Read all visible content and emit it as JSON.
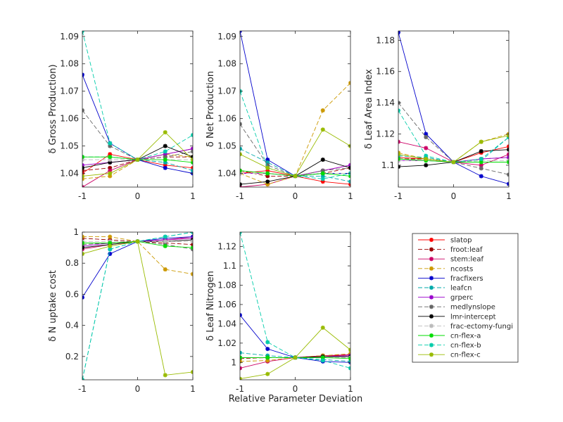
{
  "figure": {
    "xlabel": "Relative Parameter Deviation"
  },
  "legend_colors": {
    "slatop": "#ff0000",
    "froot:leaf": "#990000",
    "stem:leaf": "#cc0066",
    "ncosts": "#cc9900",
    "fracfixers": "#0000cc",
    "leafcn": "#00aaaa",
    "grperc": "#9900cc",
    "medlynslope": "#666666",
    "lmr-intercept": "#000000",
    "frac-ectomy-fungi": "#bbbbbb",
    "cn-flex-a": "#00dd00",
    "cn-flex-b": "#00ccaa",
    "cn-flex-c": "#99bb00"
  },
  "legend_styles": {
    "slatop": "solid",
    "froot:leaf": "dashed",
    "stem:leaf": "solid",
    "ncosts": "dashed",
    "fracfixers": "solid",
    "leafcn": "dashed",
    "grperc": "solid",
    "medlynslope": "dashed",
    "lmr-intercept": "solid",
    "frac-ectomy-fungi": "dashed",
    "cn-flex-a": "solid",
    "cn-flex-b": "dashed",
    "cn-flex-c": "solid"
  },
  "legend_order": [
    "slatop",
    "froot:leaf",
    "stem:leaf",
    "ncosts",
    "fracfixers",
    "leafcn",
    "grperc",
    "medlynslope",
    "lmr-intercept",
    "frac-ectomy-fungi",
    "cn-flex-a",
    "cn-flex-b",
    "cn-flex-c"
  ],
  "chart_data": [
    {
      "type": "line",
      "ylabel": "δ Gross Production)",
      "x": [
        -1,
        -0.5,
        0,
        0.5,
        1
      ],
      "xlim": [
        -1,
        1
      ],
      "ylim": [
        1.035,
        1.092
      ],
      "xticks": [
        -1,
        0,
        1
      ],
      "yticks": [
        1.04,
        1.05,
        1.06,
        1.07,
        1.08,
        1.09
      ],
      "ytick_labels": [
        "1.04",
        "1.05",
        "1.06",
        "1.07",
        "1.08",
        "1.09"
      ],
      "series": [
        {
          "name": "slatop",
          "values": [
            1.04,
            1.047,
            1.045,
            1.043,
            1.042
          ]
        },
        {
          "name": "froot:leaf",
          "values": [
            1.041,
            1.042,
            1.045,
            1.046,
            1.046
          ]
        },
        {
          "name": "stem:leaf",
          "values": [
            1.035,
            1.041,
            1.045,
            1.047,
            1.049
          ]
        },
        {
          "name": "ncosts",
          "values": [
            1.038,
            1.039,
            1.045,
            1.047,
            1.046
          ]
        },
        {
          "name": "fracfixers",
          "values": [
            1.076,
            1.051,
            1.045,
            1.042,
            1.04
          ]
        },
        {
          "name": "leafcn",
          "values": [
            1.046,
            1.046,
            1.045,
            1.044,
            1.041
          ]
        },
        {
          "name": "grperc",
          "values": [
            1.043,
            1.044,
            1.045,
            1.047,
            1.049
          ]
        },
        {
          "name": "medlynslope",
          "values": [
            1.063,
            1.05,
            1.045,
            1.046,
            1.048
          ]
        },
        {
          "name": "lmr-intercept",
          "values": [
            1.042,
            1.044,
            1.045,
            1.05,
            1.046
          ]
        },
        {
          "name": "frac-ectomy-fungi",
          "values": [
            1.045,
            1.045,
            1.045,
            1.045,
            1.045
          ]
        },
        {
          "name": "cn-flex-a",
          "values": [
            1.046,
            1.046,
            1.045,
            1.045,
            1.044
          ]
        },
        {
          "name": "cn-flex-b",
          "values": [
            1.092,
            1.051,
            1.045,
            1.048,
            1.054
          ]
        },
        {
          "name": "cn-flex-c",
          "values": [
            1.039,
            1.04,
            1.045,
            1.055,
            1.045
          ]
        }
      ]
    },
    {
      "type": "line",
      "ylabel": "δ Net Production",
      "x": [
        -1,
        -0.5,
        0,
        0.5,
        1
      ],
      "xlim": [
        -1,
        1
      ],
      "ylim": [
        1.035,
        1.092
      ],
      "xticks": [
        -1,
        0,
        1
      ],
      "yticks": [
        1.04,
        1.05,
        1.06,
        1.07,
        1.08,
        1.09
      ],
      "ytick_labels": [
        "1.04",
        "1.05",
        "1.06",
        "1.07",
        "1.08",
        "1.09"
      ],
      "series": [
        {
          "name": "slatop",
          "values": [
            1.04,
            1.041,
            1.039,
            1.037,
            1.036
          ]
        },
        {
          "name": "froot:leaf",
          "values": [
            1.041,
            1.039,
            1.039,
            1.04,
            1.042
          ]
        },
        {
          "name": "stem:leaf",
          "values": [
            1.035,
            1.036,
            1.039,
            1.041,
            1.043
          ]
        },
        {
          "name": "ncosts",
          "values": [
            1.04,
            1.036,
            1.039,
            1.063,
            1.073
          ]
        },
        {
          "name": "fracfixers",
          "values": [
            1.092,
            1.045,
            1.039,
            1.04,
            1.04
          ]
        },
        {
          "name": "leafcn",
          "values": [
            1.049,
            1.044,
            1.039,
            1.039,
            1.037
          ]
        },
        {
          "name": "grperc",
          "values": [
            1.04,
            1.04,
            1.039,
            1.041,
            1.043
          ]
        },
        {
          "name": "medlynslope",
          "values": [
            1.058,
            1.043,
            1.039,
            1.041,
            1.042
          ]
        },
        {
          "name": "lmr-intercept",
          "values": [
            1.036,
            1.037,
            1.039,
            1.045,
            1.042
          ]
        },
        {
          "name": "frac-ectomy-fungi",
          "values": [
            1.04,
            1.04,
            1.039,
            1.04,
            1.04
          ]
        },
        {
          "name": "cn-flex-a",
          "values": [
            1.041,
            1.04,
            1.039,
            1.04,
            1.039
          ]
        },
        {
          "name": "cn-flex-b",
          "values": [
            1.07,
            1.042,
            1.039,
            1.038,
            1.04
          ]
        },
        {
          "name": "cn-flex-c",
          "values": [
            1.047,
            1.042,
            1.039,
            1.056,
            1.05
          ]
        }
      ]
    },
    {
      "type": "line",
      "ylabel": "δ Leaf Area Index",
      "x": [
        -1,
        -0.5,
        0,
        0.5,
        1
      ],
      "xlim": [
        -1,
        1
      ],
      "ylim": [
        1.086,
        1.186
      ],
      "xticks": [
        -1,
        0,
        1
      ],
      "yticks": [
        1.1,
        1.12,
        1.14,
        1.16,
        1.18
      ],
      "ytick_labels": [
        "1.1",
        "1.12",
        "1.14",
        "1.16",
        "1.18"
      ],
      "series": [
        {
          "name": "slatop",
          "values": [
            1.105,
            1.104,
            1.102,
            1.108,
            1.112
          ]
        },
        {
          "name": "froot:leaf",
          "values": [
            1.104,
            1.104,
            1.102,
            1.104,
            1.105
          ]
        },
        {
          "name": "stem:leaf",
          "values": [
            1.115,
            1.111,
            1.102,
            1.1,
            1.107
          ]
        },
        {
          "name": "ncosts",
          "values": [
            1.108,
            1.104,
            1.102,
            1.115,
            1.12
          ]
        },
        {
          "name": "fracfixers",
          "values": [
            1.185,
            1.12,
            1.102,
            1.093,
            1.088
          ]
        },
        {
          "name": "leafcn",
          "values": [
            1.106,
            1.105,
            1.102,
            1.103,
            1.118
          ]
        },
        {
          "name": "grperc",
          "values": [
            1.103,
            1.103,
            1.102,
            1.104,
            1.105
          ]
        },
        {
          "name": "medlynslope",
          "values": [
            1.14,
            1.118,
            1.102,
            1.098,
            1.094
          ]
        },
        {
          "name": "lmr-intercept",
          "values": [
            1.099,
            1.1,
            1.102,
            1.109,
            1.11
          ]
        },
        {
          "name": "frac-ectomy-fungi",
          "values": [
            1.103,
            1.103,
            1.102,
            1.103,
            1.103
          ]
        },
        {
          "name": "cn-flex-a",
          "values": [
            1.104,
            1.103,
            1.102,
            1.102,
            1.102
          ]
        },
        {
          "name": "cn-flex-b",
          "values": [
            1.135,
            1.106,
            1.102,
            1.104,
            1.118
          ]
        },
        {
          "name": "cn-flex-c",
          "values": [
            1.107,
            1.104,
            1.102,
            1.115,
            1.119
          ]
        }
      ]
    },
    {
      "type": "line",
      "ylabel": "δ N uptake cost",
      "x": [
        -1,
        -0.5,
        0,
        0.5,
        1
      ],
      "xlim": [
        -1,
        1
      ],
      "ylim": [
        0.05,
        1.0
      ],
      "xticks": [
        -1,
        0,
        1
      ],
      "yticks": [
        0.2,
        0.4,
        0.6,
        0.8,
        1.0
      ],
      "ytick_labels": [
        "0.2",
        "0.4",
        "0.6",
        "0.8",
        "1"
      ],
      "series": [
        {
          "name": "slatop",
          "values": [
            0.93,
            0.93,
            0.94,
            0.95,
            0.96
          ]
        },
        {
          "name": "froot:leaf",
          "values": [
            0.96,
            0.95,
            0.94,
            0.93,
            0.92
          ]
        },
        {
          "name": "stem:leaf",
          "values": [
            0.89,
            0.92,
            0.94,
            0.95,
            0.97
          ]
        },
        {
          "name": "ncosts",
          "values": [
            0.97,
            0.97,
            0.94,
            0.76,
            0.73
          ]
        },
        {
          "name": "fracfixers",
          "values": [
            0.58,
            0.86,
            0.94,
            0.96,
            0.97
          ]
        },
        {
          "name": "leafcn",
          "values": [
            0.05,
            0.89,
            0.94,
            0.97,
            1.0
          ]
        },
        {
          "name": "grperc",
          "values": [
            0.91,
            0.93,
            0.94,
            0.95,
            0.96
          ]
        },
        {
          "name": "medlynslope",
          "values": [
            0.92,
            0.93,
            0.94,
            0.92,
            0.89
          ]
        },
        {
          "name": "lmr-intercept",
          "values": [
            0.9,
            0.92,
            0.94,
            0.94,
            0.95
          ]
        },
        {
          "name": "frac-ectomy-fungi",
          "values": [
            0.94,
            0.94,
            0.94,
            0.94,
            0.94
          ]
        },
        {
          "name": "cn-flex-a",
          "values": [
            0.93,
            0.93,
            0.94,
            0.91,
            0.9
          ]
        },
        {
          "name": "cn-flex-b",
          "values": [
            0.05,
            0.89,
            0.94,
            0.97,
            1.0
          ]
        },
        {
          "name": "cn-flex-c",
          "values": [
            0.86,
            0.91,
            0.94,
            0.08,
            0.1
          ]
        }
      ]
    },
    {
      "type": "line",
      "ylabel": "δ Leaf Nitrogen",
      "x": [
        -1,
        -0.5,
        0,
        0.5,
        1
      ],
      "xlim": [
        -1,
        1
      ],
      "ylim": [
        0.982,
        1.135
      ],
      "xticks": [
        -1,
        0,
        1
      ],
      "yticks": [
        1.0,
        1.02,
        1.04,
        1.06,
        1.08,
        1.1,
        1.12
      ],
      "ytick_labels": [
        "1",
        "1.02",
        "1.04",
        "1.06",
        "1.08",
        "1.1",
        "1.12"
      ],
      "series": [
        {
          "name": "slatop",
          "values": [
            1.005,
            1.005,
            1.005,
            1.006,
            1.008
          ]
        },
        {
          "name": "froot:leaf",
          "values": [
            1.004,
            1.005,
            1.005,
            1.007,
            1.008
          ]
        },
        {
          "name": "stem:leaf",
          "values": [
            0.994,
            1.001,
            1.005,
            1.007,
            1.008
          ]
        },
        {
          "name": "ncosts",
          "values": [
            1.001,
            1.002,
            1.005,
            1.007,
            1.009
          ]
        },
        {
          "name": "fracfixers",
          "values": [
            1.049,
            1.014,
            1.005,
            1.001,
            1.0
          ]
        },
        {
          "name": "leafcn",
          "values": [
            1.01,
            1.007,
            1.005,
            1.003,
            1.001
          ]
        },
        {
          "name": "grperc",
          "values": [
            1.005,
            1.005,
            1.005,
            1.006,
            1.007
          ]
        },
        {
          "name": "medlynslope",
          "values": [
            1.005,
            1.005,
            1.005,
            1.005,
            1.005
          ]
        },
        {
          "name": "lmr-intercept",
          "values": [
            1.005,
            1.005,
            1.005,
            1.006,
            1.006
          ]
        },
        {
          "name": "frac-ectomy-fungi",
          "values": [
            1.005,
            1.005,
            1.005,
            1.005,
            1.005
          ]
        },
        {
          "name": "cn-flex-a",
          "values": [
            1.005,
            1.005,
            1.005,
            1.005,
            1.004
          ]
        },
        {
          "name": "cn-flex-b",
          "values": [
            1.135,
            1.021,
            1.005,
            1.002,
            0.994
          ]
        },
        {
          "name": "cn-flex-c",
          "values": [
            0.983,
            0.988,
            1.005,
            1.036,
            1.013
          ]
        }
      ]
    }
  ]
}
